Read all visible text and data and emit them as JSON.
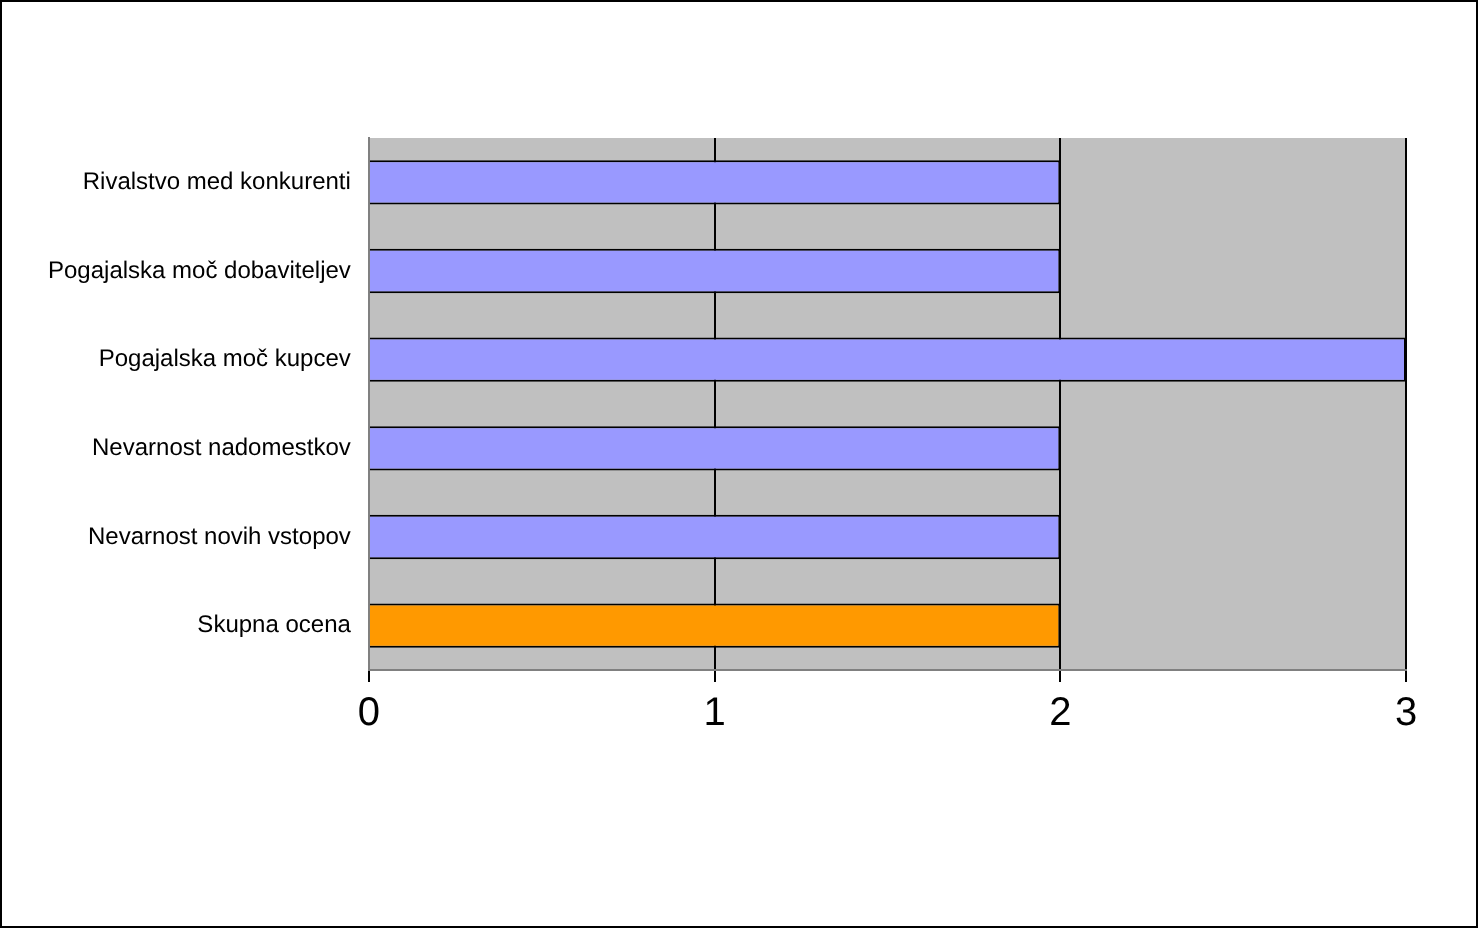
{
  "chart_data": {
    "type": "bar",
    "orientation": "horizontal",
    "categories": [
      "Rivalstvo med konkurenti",
      "Pogajalska moč dobaviteljev",
      "Pogajalska moč kupcev",
      "Nevarnost nadomestkov",
      "Nevarnost novih vstopov",
      "Skupna ocena"
    ],
    "values": [
      2,
      2,
      3,
      2,
      2,
      2
    ],
    "colors": [
      "#9999ff",
      "#9999ff",
      "#9999ff",
      "#9999ff",
      "#9999ff",
      "#ff9900"
    ],
    "xlim": [
      0,
      3
    ],
    "xticks": [
      0,
      1,
      2,
      3
    ],
    "grid": "x",
    "legend": false
  }
}
